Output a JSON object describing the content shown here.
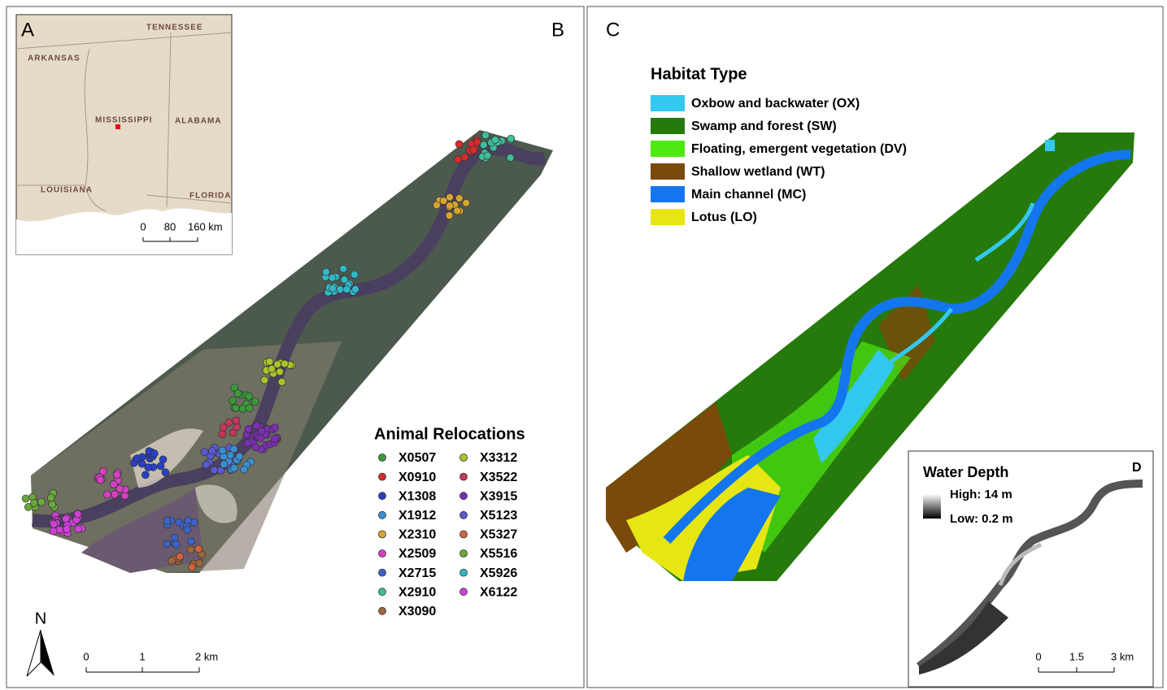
{
  "panel_a": {
    "letter": "A",
    "states": [
      "TENNESSEE",
      "ARKANSAS",
      "MISSISSIPPI",
      "ALABAMA",
      "LOUISIANA",
      "FLORIDA"
    ],
    "scale": [
      "0",
      "80",
      "160 km"
    ]
  },
  "panel_b": {
    "letter": "B",
    "legend_title": "Animal Relocations",
    "items": [
      {
        "name": "X0507",
        "color": "#3a9a3a"
      },
      {
        "name": "X0910",
        "color": "#d62b2b"
      },
      {
        "name": "X1308",
        "color": "#2b3fc4"
      },
      {
        "name": "X1912",
        "color": "#3a8fd0"
      },
      {
        "name": "X2310",
        "color": "#d8a530"
      },
      {
        "name": "X2509",
        "color": "#d93fc4"
      },
      {
        "name": "X2715",
        "color": "#3d63c4"
      },
      {
        "name": "X2910",
        "color": "#3cbf9a"
      },
      {
        "name": "X3090",
        "color": "#a0643a"
      },
      {
        "name": "X3312",
        "color": "#a8c42a"
      },
      {
        "name": "X3522",
        "color": "#c4385a"
      },
      {
        "name": "X3915",
        "color": "#7a2fb0"
      },
      {
        "name": "X5123",
        "color": "#5a5ad0"
      },
      {
        "name": "X5327",
        "color": "#d0643a"
      },
      {
        "name": "X5516",
        "color": "#6aa83a"
      },
      {
        "name": "X5926",
        "color": "#30b8c8"
      },
      {
        "name": "X6122",
        "color": "#d040d8"
      }
    ],
    "north": "N",
    "scale": [
      "0",
      "1",
      "2 km"
    ]
  },
  "panel_c": {
    "letter": "C",
    "legend_title": "Habitat Type",
    "items": [
      {
        "name": "Oxbow and backwater (OX)",
        "color": "#33c8f0"
      },
      {
        "name": "Swamp and forest (SW)",
        "color": "#267a0c"
      },
      {
        "name": "Floating, emergent vegetation (DV)",
        "color": "#4ee812"
      },
      {
        "name": "Shallow wetland (WT)",
        "color": "#7a4a0a"
      },
      {
        "name": "Main channel (MC)",
        "color": "#1476ee"
      },
      {
        "name": "Lotus (LO)",
        "color": "#e6e614"
      }
    ]
  },
  "panel_d": {
    "letter": "D",
    "legend_title": "Water Depth",
    "high": "High: 14 m",
    "low": "Low: 0.2 m",
    "scale": [
      "0",
      "1.5",
      "3 km"
    ]
  }
}
